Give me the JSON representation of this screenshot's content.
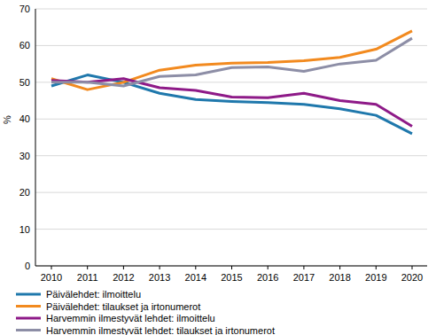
{
  "chart_data": {
    "type": "line",
    "y_label": "%",
    "categories": [
      "2010",
      "2011",
      "2012",
      "2013",
      "2014",
      "2015",
      "2016",
      "2017",
      "2018",
      "2019",
      "2020"
    ],
    "series": [
      {
        "name": "Päivälehdet: ilmoittelu",
        "color": "#1f78ac",
        "values": [
          49,
          52,
          50,
          47,
          45.3,
          44.8,
          44.5,
          44,
          42.8,
          41,
          36
        ]
      },
      {
        "name": "Päivälehdet: tilaukset ja irtonumerot",
        "color": "#f28a1f",
        "values": [
          51,
          48,
          50,
          53.3,
          54.7,
          55.2,
          55.4,
          55.9,
          56.8,
          59,
          64
        ]
      },
      {
        "name": "Harvemmin ilmestyvät lehdet: ilmoittelu",
        "color": "#8e1a88",
        "values": [
          50.5,
          50,
          51,
          48.5,
          47.8,
          46,
          45.8,
          47,
          45,
          44,
          38
        ]
      },
      {
        "name": "Harvemmin ilmestyvät lehdet: tilaukset ja irtonumerot",
        "color": "#8d8ea6",
        "values": [
          50,
          50,
          49,
          51.6,
          52,
          54,
          54.2,
          53,
          55,
          56,
          62
        ]
      }
    ],
    "ylim": [
      0,
      70
    ],
    "yticks": [
      0,
      10,
      20,
      30,
      40,
      50,
      60,
      70
    ],
    "grid": true,
    "legend": "bottom"
  }
}
